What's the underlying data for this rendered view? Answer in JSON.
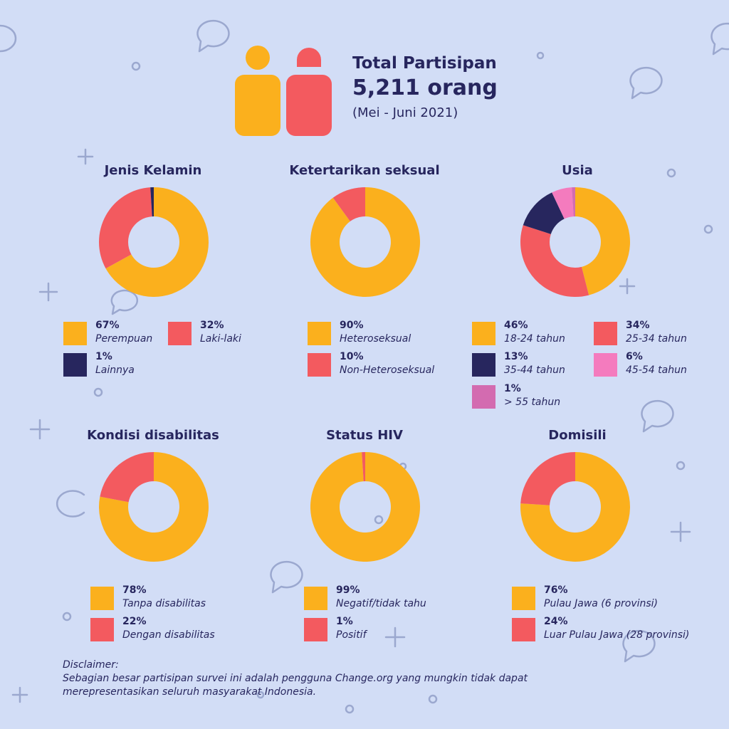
{
  "header": {
    "title": "Total Partisipan",
    "count": "5,211 orang",
    "period": "(Mei - Juni 2021)"
  },
  "colors": {
    "background": "#d2ddf6",
    "text": "#27265e",
    "yellow": "#fbb01d",
    "red": "#f35a5f",
    "navy": "#27265e",
    "pink": "#f47bbe",
    "magenta": "#d36bb0",
    "decoration": "#9ba8cf"
  },
  "chart_data": [
    {
      "type": "pie",
      "title": "Jenis Kelamin",
      "series": [
        {
          "label": "Perempuan",
          "value": 67,
          "pct": "67%",
          "color": "#fbb01d"
        },
        {
          "label": "Laki-laki",
          "value": 32,
          "pct": "32%",
          "color": "#f35a5f"
        },
        {
          "label": "Lainnya",
          "value": 1,
          "pct": "1%",
          "color": "#27265e"
        }
      ]
    },
    {
      "type": "pie",
      "title": "Ketertarikan seksual",
      "series": [
        {
          "label": "Heteroseksual",
          "value": 90,
          "pct": "90%",
          "color": "#fbb01d"
        },
        {
          "label": "Non-Heteroseksual",
          "value": 10,
          "pct": "10%",
          "color": "#f35a5f"
        }
      ]
    },
    {
      "type": "pie",
      "title": "Usia",
      "series": [
        {
          "label": "18-24 tahun",
          "value": 46,
          "pct": "46%",
          "color": "#fbb01d"
        },
        {
          "label": "25-34 tahun",
          "value": 34,
          "pct": "34%",
          "color": "#f35a5f"
        },
        {
          "label": "35-44 tahun",
          "value": 13,
          "pct": "13%",
          "color": "#27265e"
        },
        {
          "label": "45-54 tahun",
          "value": 6,
          "pct": "6%",
          "color": "#f47bbe"
        },
        {
          "label": "> 55 tahun",
          "value": 1,
          "pct": "1%",
          "color": "#d36bb0"
        }
      ]
    },
    {
      "type": "pie",
      "title": "Kondisi disabilitas",
      "series": [
        {
          "label": "Tanpa disabilitas",
          "value": 78,
          "pct": "78%",
          "color": "#fbb01d"
        },
        {
          "label": "Dengan disabilitas",
          "value": 22,
          "pct": "22%",
          "color": "#f35a5f"
        }
      ]
    },
    {
      "type": "pie",
      "title": "Status HIV",
      "series": [
        {
          "label": "Negatif/tidak tahu",
          "value": 99,
          "pct": "99%",
          "color": "#fbb01d"
        },
        {
          "label": "Positif",
          "value": 1,
          "pct": "1%",
          "color": "#f35a5f"
        }
      ]
    },
    {
      "type": "pie",
      "title": "Domisili",
      "series": [
        {
          "label": "Pulau Jawa (6 provinsi)",
          "value": 76,
          "pct": "76%",
          "color": "#fbb01d"
        },
        {
          "label": "Luar Pulau Jawa (28 provinsi)",
          "value": 24,
          "pct": "24%",
          "color": "#f35a5f"
        }
      ]
    }
  ],
  "disclaimer": {
    "heading": "Disclaimer:",
    "line1": "Sebagian besar partisipan survei ini adalah pengguna Change.org yang mungkin tidak dapat",
    "line2": "merepresentasikan seluruh masyarakat Indonesia."
  }
}
